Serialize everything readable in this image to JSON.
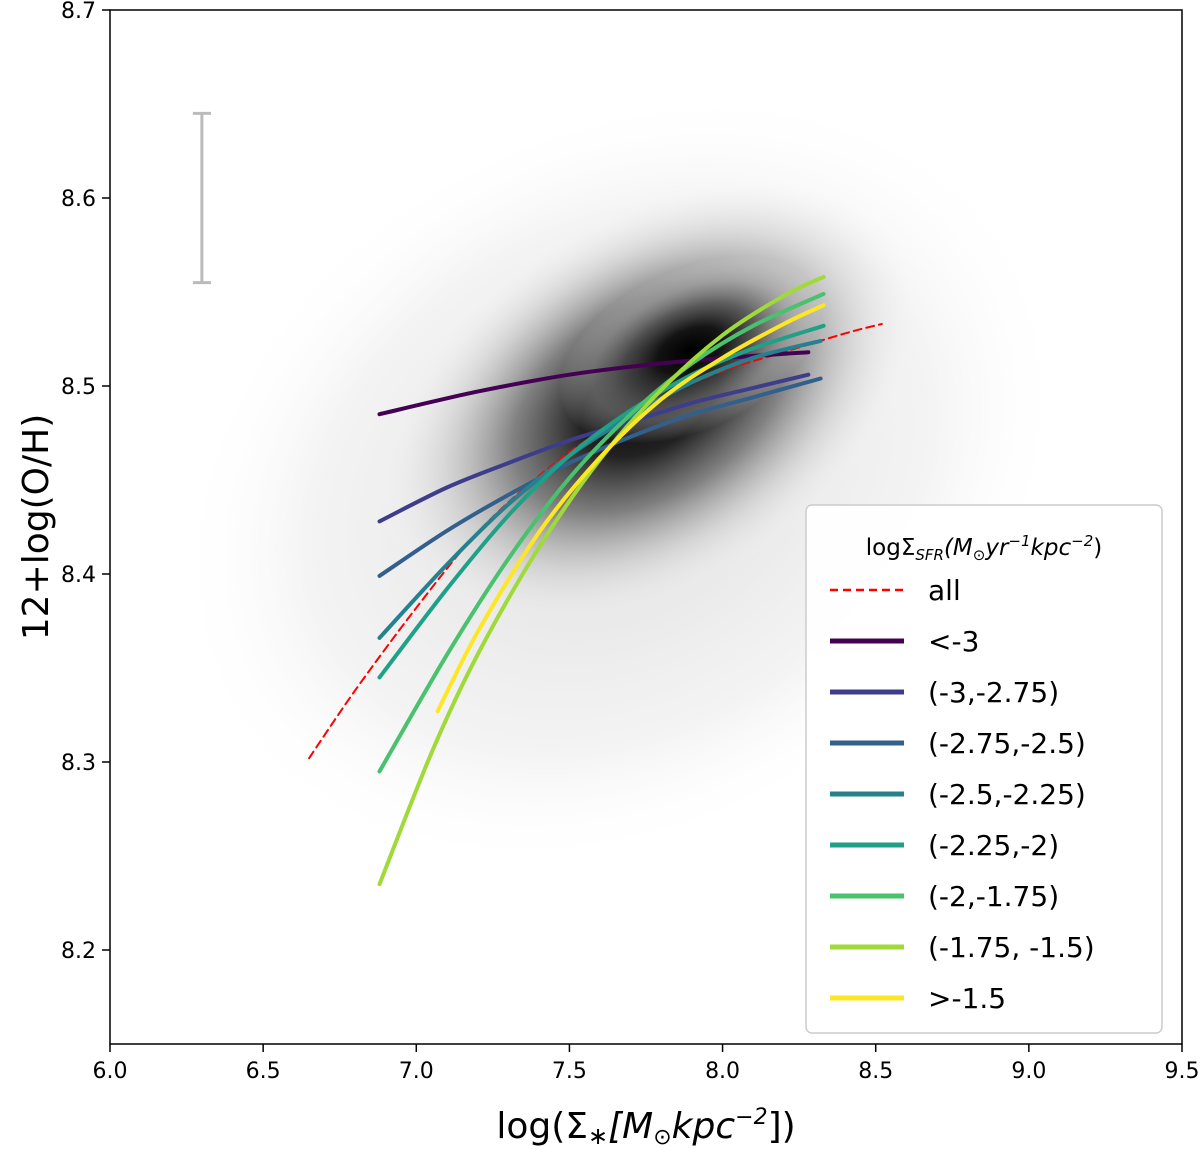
{
  "chart_data": {
    "type": "line",
    "xlabel_parts": {
      "main": "log(Σ",
      "sub": "∗",
      "bracket": "[M",
      "odot": "⊙",
      "unit": "kpc",
      "exp": "−2",
      "close": "])"
    },
    "ylabel": "12+log(O/H)",
    "xlim": [
      6.0,
      9.5
    ],
    "ylim": [
      8.15,
      8.7
    ],
    "xticks": [
      6.0,
      6.5,
      7.0,
      7.5,
      8.0,
      8.5,
      9.0,
      9.5
    ],
    "yticks": [
      8.2,
      8.3,
      8.4,
      8.5,
      8.6,
      8.7
    ],
    "xtick_labels": [
      "6.0",
      "6.5",
      "7.0",
      "7.5",
      "8.0",
      "8.5",
      "9.0",
      "9.5"
    ],
    "ytick_labels": [
      "8.2",
      "8.3",
      "8.4",
      "8.5",
      "8.6",
      "8.7"
    ],
    "grid": false,
    "background": "hexbin density (grayscale), peak near x=7.9, y=8.53",
    "error_bar": {
      "x": 6.3,
      "y_low": 8.555,
      "y_high": 8.645,
      "color": "#bbbbbb"
    },
    "legend": {
      "placement": "lower-right",
      "title_parts": {
        "main": "logΣ",
        "sub": "SFR",
        "open": "(M",
        "odot": "⊙",
        "yr": "yr",
        "yrexp": "−1",
        "kpc": "kpc",
        "kpcexp": "−2",
        "close": ")"
      }
    },
    "series": [
      {
        "name": "all",
        "color": "#ff0000",
        "dashed": true,
        "width": 2,
        "x": [
          6.65,
          6.8,
          7.0,
          7.2,
          7.4,
          7.6,
          7.8,
          8.0,
          8.2,
          8.4,
          8.52
        ],
        "y": [
          8.302,
          8.338,
          8.382,
          8.422,
          8.452,
          8.476,
          8.494,
          8.508,
          8.518,
          8.528,
          8.533
        ]
      },
      {
        "name": "<-3",
        "color": "#440154",
        "dashed": false,
        "width": 4,
        "x": [
          6.88,
          7.2,
          7.5,
          7.8,
          8.1,
          8.28
        ],
        "y": [
          8.485,
          8.497,
          8.506,
          8.512,
          8.516,
          8.518
        ]
      },
      {
        "name": "(-3,-2.75)",
        "color": "#3e3d8c",
        "dashed": false,
        "width": 4,
        "x": [
          6.88,
          7.1,
          7.3,
          7.5,
          7.7,
          7.9,
          8.1,
          8.28
        ],
        "y": [
          8.428,
          8.446,
          8.459,
          8.471,
          8.481,
          8.491,
          8.499,
          8.506
        ]
      },
      {
        "name": "(-2.75,-2.5)",
        "color": "#335f8d",
        "dashed": false,
        "width": 4,
        "x": [
          6.88,
          7.1,
          7.3,
          7.5,
          7.7,
          7.9,
          8.1,
          8.32
        ],
        "y": [
          8.399,
          8.423,
          8.442,
          8.459,
          8.473,
          8.485,
          8.494,
          8.504
        ]
      },
      {
        "name": "(-2.5,-2.25)",
        "color": "#26818e",
        "dashed": false,
        "width": 4,
        "x": [
          6.88,
          7.1,
          7.3,
          7.5,
          7.7,
          7.9,
          8.1,
          8.32
        ],
        "y": [
          8.366,
          8.405,
          8.437,
          8.463,
          8.484,
          8.502,
          8.515,
          8.524
        ]
      },
      {
        "name": "(-2.25,-2)",
        "color": "#1fa187",
        "dashed": false,
        "width": 4,
        "x": [
          6.88,
          7.1,
          7.3,
          7.5,
          7.7,
          7.9,
          8.1,
          8.33
        ],
        "y": [
          8.345,
          8.392,
          8.431,
          8.463,
          8.487,
          8.506,
          8.52,
          8.532
        ]
      },
      {
        "name": "(-2,-1.75)",
        "color": "#4ac16d",
        "dashed": false,
        "width": 4,
        "x": [
          6.88,
          7.1,
          7.3,
          7.5,
          7.7,
          7.9,
          8.1,
          8.33
        ],
        "y": [
          8.295,
          8.357,
          8.408,
          8.451,
          8.485,
          8.512,
          8.532,
          8.549
        ]
      },
      {
        "name": "(-1.75, -1.5)",
        "color": "#a0da39",
        "dashed": false,
        "width": 4,
        "x": [
          6.88,
          7.05,
          7.2,
          7.4,
          7.6,
          7.8,
          8.0,
          8.2,
          8.33
        ],
        "y": [
          8.235,
          8.305,
          8.357,
          8.414,
          8.461,
          8.498,
          8.527,
          8.548,
          8.558
        ]
      },
      {
        "name": ">-1.5",
        "color": "#fde725",
        "dashed": false,
        "width": 4,
        "x": [
          7.07,
          7.2,
          7.4,
          7.6,
          7.8,
          8.0,
          8.2,
          8.33
        ],
        "y": [
          8.327,
          8.369,
          8.422,
          8.462,
          8.493,
          8.515,
          8.533,
          8.543
        ]
      }
    ]
  }
}
